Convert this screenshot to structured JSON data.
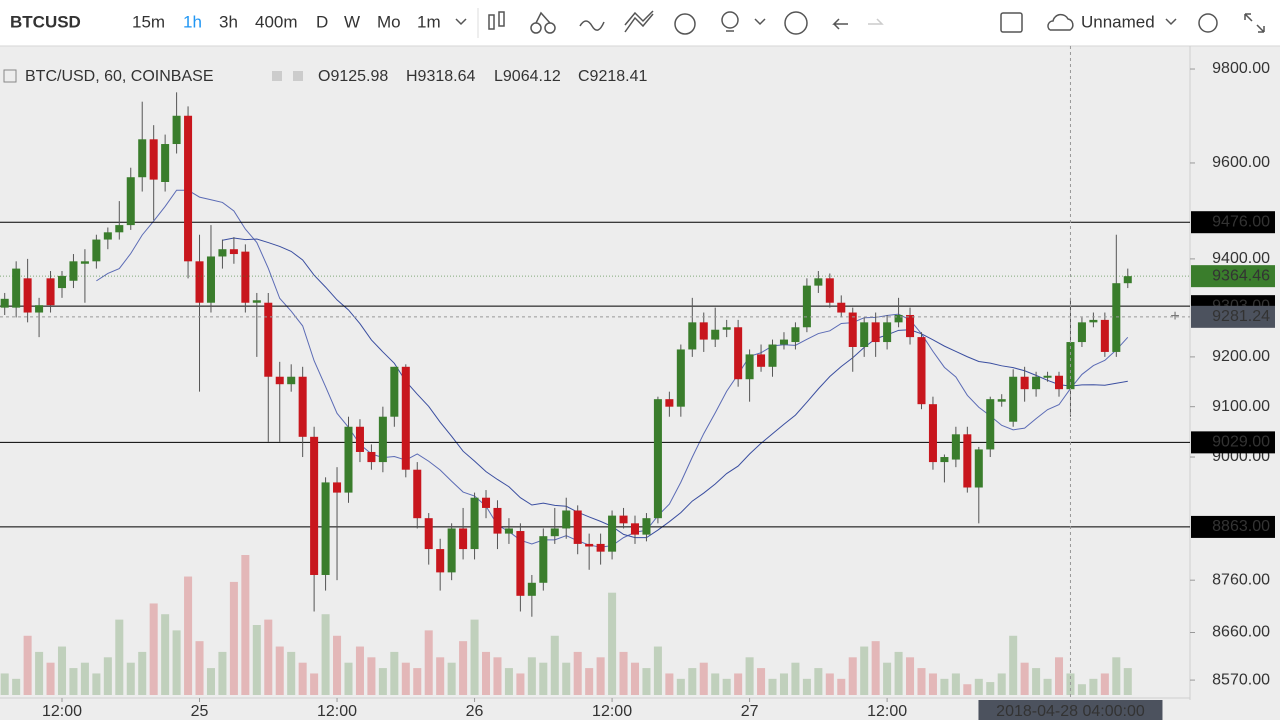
{
  "toolbar": {
    "symbol": "BTCUSD",
    "intervals": [
      "15m",
      "1h",
      "3h",
      "400m",
      "D",
      "W",
      "Mo",
      "1m"
    ],
    "active_interval": 1,
    "layout_name": "Unnamed"
  },
  "legend": {
    "title": "BTC/USD, 60, COINBASE",
    "ohlc": [
      "O9125.98",
      "H9318.64",
      "L9064.12",
      "C9218.41"
    ]
  },
  "chart_data": {
    "type": "candlestick",
    "log_scale": true,
    "grid": false,
    "up_color": "#3a7d2c",
    "down_color": "#c8161d",
    "level_color": "#000000",
    "xlim": [
      -5.41,
      98.43
    ],
    "ylim": [
      8542,
      9841
    ],
    "xticks": [
      {
        "value": 0,
        "label": "12:00"
      },
      {
        "value": 12,
        "label": "25"
      },
      {
        "value": 24,
        "label": "12:00"
      },
      {
        "value": 36,
        "label": "26"
      },
      {
        "value": 48,
        "label": "12:00"
      },
      {
        "value": 60,
        "label": "27"
      },
      {
        "value": 72,
        "label": "12:00"
      }
    ],
    "yticks": [
      {
        "value": 9800,
        "label": "9800.00"
      },
      {
        "value": 9600,
        "label": "9600.00"
      },
      {
        "value": 9400,
        "label": "9400.00"
      },
      {
        "value": 9200,
        "label": "9200.00"
      },
      {
        "value": 9100,
        "label": "9100.00"
      },
      {
        "value": 9000,
        "label": "9000.00"
      },
      {
        "value": 8760,
        "label": "8760.00"
      },
      {
        "value": 8660,
        "label": "8660.00"
      },
      {
        "value": 8570,
        "label": "8570.00"
      }
    ],
    "levels": [
      {
        "value": 9476,
        "label": "9476.00"
      },
      {
        "value": 9303,
        "label": "9303.00"
      },
      {
        "value": 9029,
        "label": "9029.00"
      },
      {
        "value": 8863,
        "label": "8863.00"
      }
    ],
    "last_price": {
      "value": 9364.46,
      "label": "9364.46"
    },
    "crosshair": {
      "x": 88,
      "y": {
        "value": 9281.24,
        "label": "9281.24"
      },
      "time_label": "2018-04-28 04:00:00"
    },
    "x": [
      -5,
      -4,
      -3,
      -2,
      -1,
      0,
      1,
      2,
      3,
      4,
      5,
      6,
      7,
      8,
      9,
      10,
      11,
      12,
      13,
      14,
      15,
      16,
      17,
      18,
      19,
      20,
      21,
      22,
      23,
      24,
      25,
      26,
      27,
      28,
      29,
      30,
      31,
      32,
      33,
      34,
      35,
      36,
      37,
      38,
      39,
      40,
      41,
      42,
      43,
      44,
      45,
      46,
      47,
      48,
      49,
      50,
      51,
      52,
      53,
      54,
      55,
      56,
      57,
      58,
      59,
      60,
      61,
      62,
      63,
      64,
      65,
      66,
      67,
      68,
      69,
      70,
      71,
      72,
      73,
      74,
      75,
      76,
      77,
      78,
      79,
      80,
      81,
      82,
      83,
      84,
      85,
      86,
      87,
      88,
      89,
      90,
      91,
      92,
      93
    ],
    "candles": [
      [
        9300,
        9330,
        9285,
        9318
      ],
      [
        9300,
        9395,
        9280,
        9380
      ],
      [
        9360,
        9400,
        9270,
        9290
      ],
      [
        9290,
        9320,
        9240,
        9305
      ],
      [
        9360,
        9375,
        9290,
        9305
      ],
      [
        9340,
        9375,
        9320,
        9365
      ],
      [
        9355,
        9410,
        9340,
        9395
      ],
      [
        9390,
        9420,
        9310,
        9395
      ],
      [
        9395,
        9450,
        9380,
        9440
      ],
      [
        9440,
        9465,
        9420,
        9455
      ],
      [
        9455,
        9520,
        9440,
        9470
      ],
      [
        9470,
        9590,
        9460,
        9570
      ],
      [
        9570,
        9730,
        9540,
        9650
      ],
      [
        9650,
        9680,
        9480,
        9565
      ],
      [
        9560,
        9660,
        9540,
        9640
      ],
      [
        9640,
        9750,
        9620,
        9700
      ],
      [
        9700,
        9720,
        9360,
        9395
      ],
      [
        9395,
        9450,
        9130,
        9310
      ],
      [
        9310,
        9470,
        9290,
        9405
      ],
      [
        9405,
        9440,
        9380,
        9420
      ],
      [
        9420,
        9445,
        9390,
        9410
      ],
      [
        9415,
        9430,
        9290,
        9310
      ],
      [
        9310,
        9330,
        9200,
        9315
      ],
      [
        9310,
        9330,
        9030,
        9160
      ],
      [
        9160,
        9190,
        9030,
        9145
      ],
      [
        9145,
        9185,
        9130,
        9160
      ],
      [
        9160,
        9180,
        9000,
        9040
      ],
      [
        9040,
        9060,
        8700,
        8770
      ],
      [
        8770,
        8960,
        8740,
        8950
      ],
      [
        8950,
        8980,
        8760,
        8930
      ],
      [
        8930,
        9080,
        8910,
        9060
      ],
      [
        9060,
        9075,
        8990,
        9010
      ],
      [
        9010,
        9025,
        8975,
        8990
      ],
      [
        8990,
        9100,
        8970,
        9080
      ],
      [
        9080,
        9180,
        9060,
        9180
      ],
      [
        9180,
        9185,
        8960,
        8975
      ],
      [
        8975,
        8990,
        8860,
        8880
      ],
      [
        8880,
        8890,
        8790,
        8820
      ],
      [
        8820,
        8840,
        8740,
        8775
      ],
      [
        8775,
        8870,
        8760,
        8860
      ],
      [
        8860,
        8900,
        8800,
        8820
      ],
      [
        8820,
        8930,
        8800,
        8920
      ],
      [
        8920,
        8935,
        8880,
        8900
      ],
      [
        8900,
        8915,
        8820,
        8850
      ],
      [
        8850,
        8880,
        8830,
        8860
      ],
      [
        8855,
        8870,
        8700,
        8730
      ],
      [
        8730,
        8770,
        8690,
        8755
      ],
      [
        8755,
        8860,
        8740,
        8845
      ],
      [
        8845,
        8900,
        8830,
        8860
      ],
      [
        8860,
        8920,
        8840,
        8895
      ],
      [
        8895,
        8905,
        8810,
        8830
      ],
      [
        8830,
        8850,
        8780,
        8825
      ],
      [
        8830,
        8850,
        8790,
        8815
      ],
      [
        8815,
        8895,
        8800,
        8885
      ],
      [
        8885,
        8900,
        8860,
        8870
      ],
      [
        8870,
        8885,
        8830,
        8848
      ],
      [
        8848,
        8890,
        8835,
        8880
      ],
      [
        8880,
        9120,
        8870,
        9115
      ],
      [
        9115,
        9130,
        9080,
        9100
      ],
      [
        9100,
        9225,
        9080,
        9215
      ],
      [
        9215,
        9320,
        9200,
        9270
      ],
      [
        9270,
        9290,
        9210,
        9235
      ],
      [
        9235,
        9300,
        9220,
        9255
      ],
      [
        9255,
        9275,
        9240,
        9260
      ],
      [
        9260,
        9275,
        9140,
        9155
      ],
      [
        9155,
        9215,
        9110,
        9205
      ],
      [
        9205,
        9225,
        9170,
        9180
      ],
      [
        9180,
        9235,
        9160,
        9225
      ],
      [
        9225,
        9250,
        9215,
        9235
      ],
      [
        9230,
        9270,
        9215,
        9260
      ],
      [
        9260,
        9360,
        9250,
        9345
      ],
      [
        9345,
        9375,
        9330,
        9360
      ],
      [
        9360,
        9370,
        9300,
        9310
      ],
      [
        9310,
        9325,
        9280,
        9290
      ],
      [
        9290,
        9300,
        9170,
        9220
      ],
      [
        9220,
        9280,
        9200,
        9270
      ],
      [
        9270,
        9290,
        9200,
        9230
      ],
      [
        9230,
        9285,
        9215,
        9270
      ],
      [
        9270,
        9320,
        9260,
        9285
      ],
      [
        9285,
        9300,
        9225,
        9240
      ],
      [
        9240,
        9250,
        9095,
        9105
      ],
      [
        9105,
        9120,
        8975,
        8990
      ],
      [
        8990,
        9005,
        8950,
        9000
      ],
      [
        8995,
        9060,
        8980,
        9045
      ],
      [
        9045,
        9060,
        8930,
        8940
      ],
      [
        8940,
        9020,
        8870,
        9015
      ],
      [
        9015,
        9120,
        9000,
        9115
      ],
      [
        9110,
        9125,
        9100,
        9115
      ],
      [
        9070,
        9175,
        9060,
        9160
      ],
      [
        9160,
        9180,
        9110,
        9135
      ],
      [
        9135,
        9170,
        9120,
        9160
      ],
      [
        9158,
        9170,
        9150,
        9162
      ],
      [
        9162,
        9170,
        9120,
        9135
      ],
      [
        9135,
        9320,
        9080,
        9230
      ],
      [
        9230,
        9280,
        9220,
        9270
      ],
      [
        9270,
        9290,
        9260,
        9275
      ],
      [
        9275,
        9290,
        9200,
        9210
      ],
      [
        9210,
        9450,
        9200,
        9350
      ],
      [
        9350,
        9380,
        9340,
        9364.46
      ]
    ],
    "volume": [
      20,
      15,
      55,
      40,
      30,
      45,
      25,
      30,
      20,
      35,
      70,
      30,
      40,
      85,
      75,
      60,
      110,
      50,
      25,
      40,
      105,
      130,
      65,
      70,
      45,
      40,
      30,
      20,
      75,
      55,
      30,
      45,
      35,
      25,
      40,
      30,
      25,
      60,
      35,
      30,
      50,
      70,
      40,
      35,
      25,
      20,
      35,
      30,
      55,
      30,
      40,
      25,
      35,
      95,
      40,
      30,
      25,
      45,
      20,
      15,
      25,
      30,
      20,
      15,
      20,
      35,
      25,
      15,
      20,
      30,
      15,
      25,
      20,
      15,
      35,
      45,
      50,
      30,
      40,
      35,
      25,
      20,
      15,
      20,
      10,
      15,
      12,
      20,
      55,
      30,
      25,
      15,
      35,
      20,
      10,
      15,
      20,
      35,
      25
    ]
  }
}
